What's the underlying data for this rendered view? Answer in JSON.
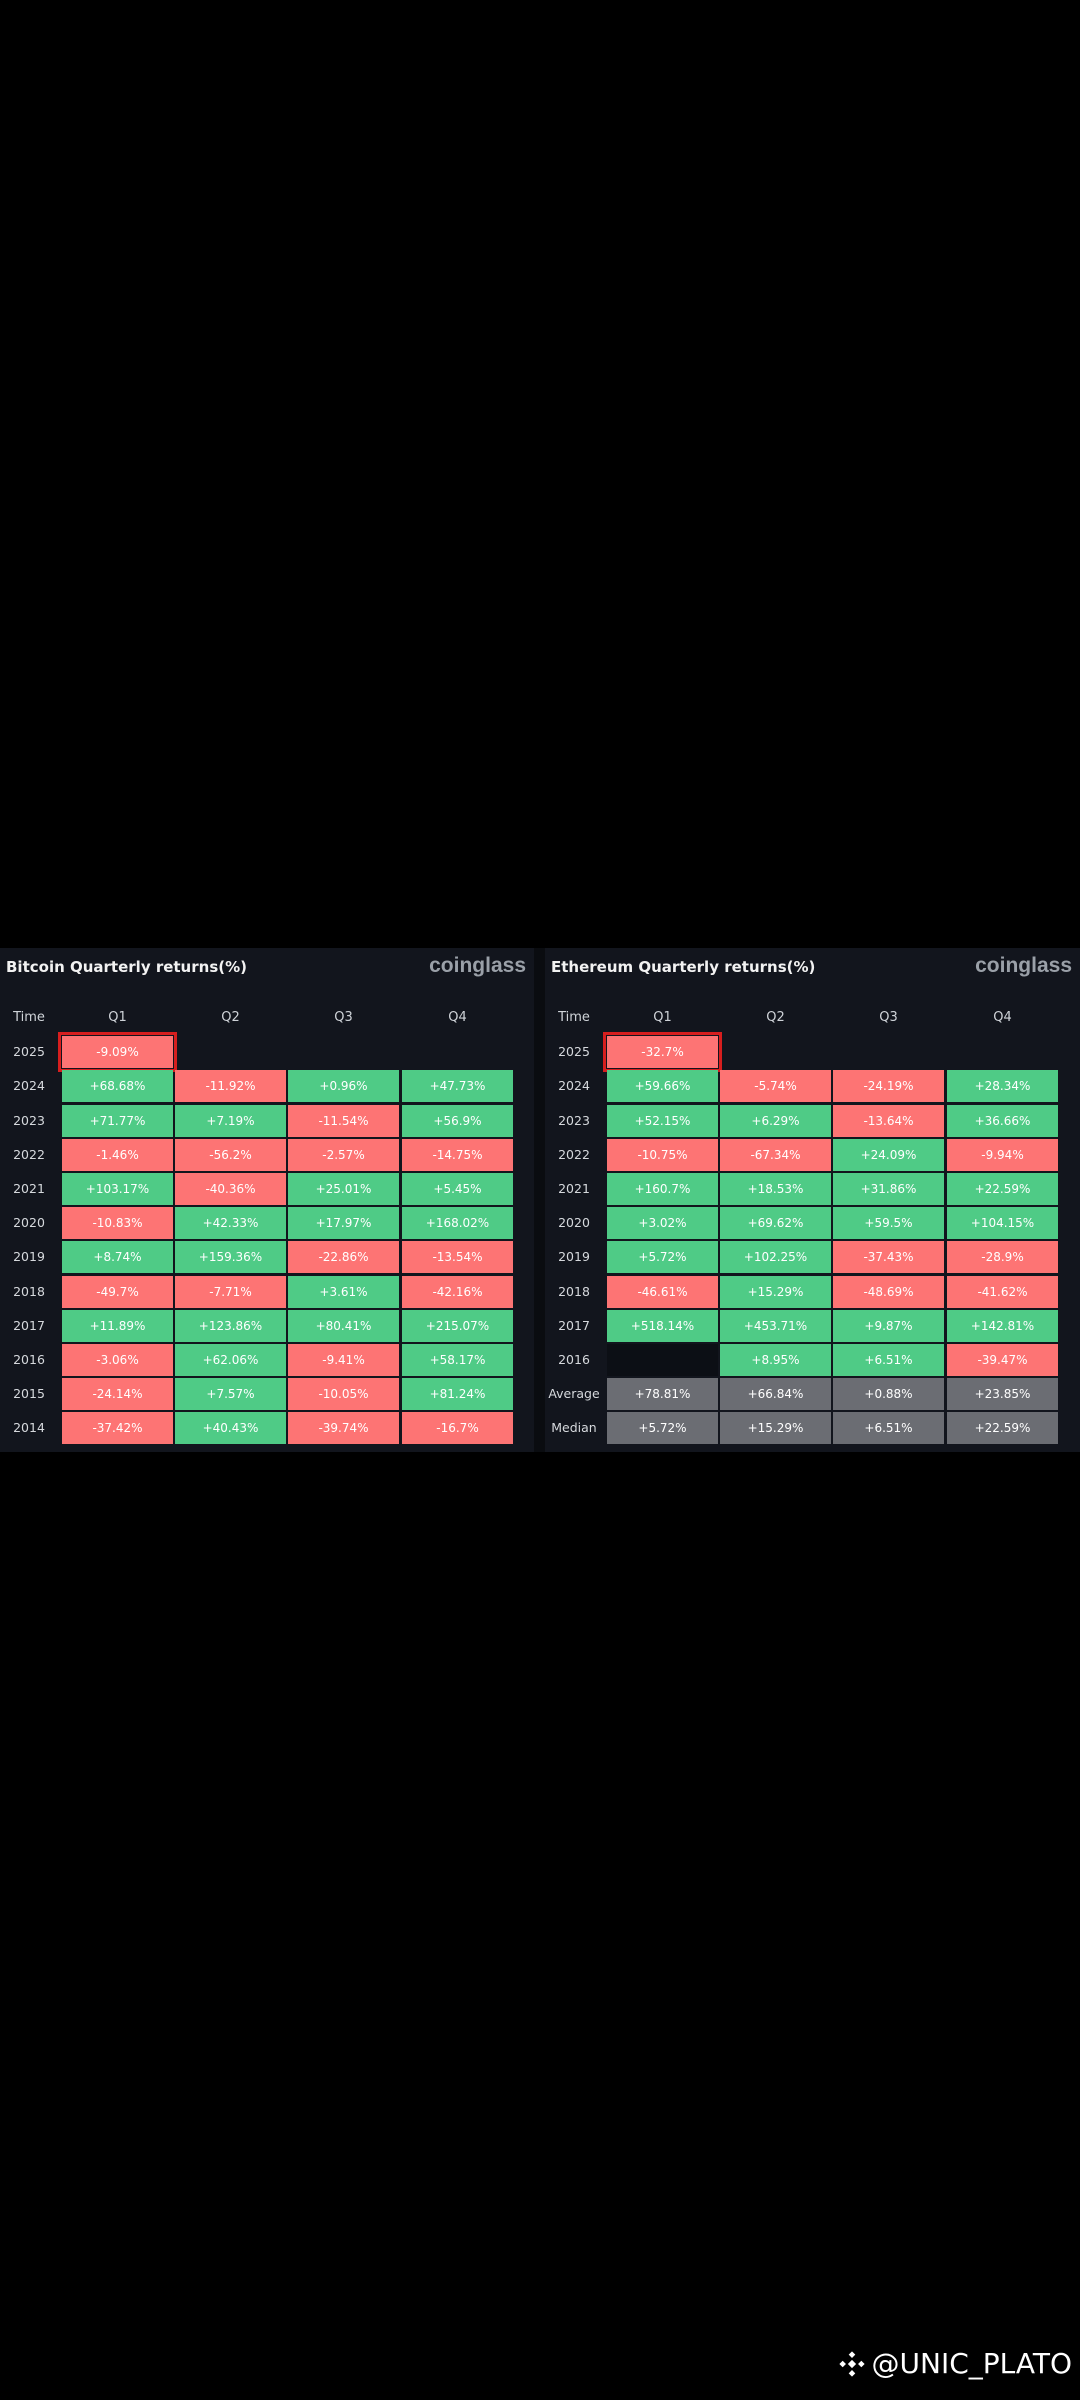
{
  "btc": {
    "title": "Bitcoin Quarterly returns(%)",
    "brand": "coinglass",
    "headers": [
      "Time",
      "Q1",
      "Q2",
      "Q3",
      "Q4"
    ],
    "rows": [
      {
        "label": "2025",
        "values": [
          "-9.09%",
          "",
          "",
          ""
        ]
      },
      {
        "label": "2024",
        "values": [
          "+68.68%",
          "-11.92%",
          "+0.96%",
          "+47.73%"
        ]
      },
      {
        "label": "2023",
        "values": [
          "+71.77%",
          "+7.19%",
          "-11.54%",
          "+56.9%"
        ]
      },
      {
        "label": "2022",
        "values": [
          "-1.46%",
          "-56.2%",
          "-2.57%",
          "-14.75%"
        ]
      },
      {
        "label": "2021",
        "values": [
          "+103.17%",
          "-40.36%",
          "+25.01%",
          "+5.45%"
        ]
      },
      {
        "label": "2020",
        "values": [
          "-10.83%",
          "+42.33%",
          "+17.97%",
          "+168.02%"
        ]
      },
      {
        "label": "2019",
        "values": [
          "+8.74%",
          "+159.36%",
          "-22.86%",
          "-13.54%"
        ]
      },
      {
        "label": "2018",
        "values": [
          "-49.7%",
          "-7.71%",
          "+3.61%",
          "-42.16%"
        ]
      },
      {
        "label": "2017",
        "values": [
          "+11.89%",
          "+123.86%",
          "+80.41%",
          "+215.07%"
        ]
      },
      {
        "label": "2016",
        "values": [
          "-3.06%",
          "+62.06%",
          "-9.41%",
          "+58.17%"
        ]
      },
      {
        "label": "2015",
        "values": [
          "-24.14%",
          "+7.57%",
          "-10.05%",
          "+81.24%"
        ]
      },
      {
        "label": "2014",
        "values": [
          "-37.42%",
          "+40.43%",
          "-39.74%",
          "-16.7%"
        ]
      }
    ]
  },
  "eth": {
    "title": "Ethereum Quarterly returns(%)",
    "brand": "coinglass",
    "headers": [
      "Time",
      "Q1",
      "Q2",
      "Q3",
      "Q4"
    ],
    "rows": [
      {
        "label": "2025",
        "values": [
          "-32.7%",
          "",
          "",
          ""
        ]
      },
      {
        "label": "2024",
        "values": [
          "+59.66%",
          "-5.74%",
          "-24.19%",
          "+28.34%"
        ]
      },
      {
        "label": "2023",
        "values": [
          "+52.15%",
          "+6.29%",
          "-13.64%",
          "+36.66%"
        ]
      },
      {
        "label": "2022",
        "values": [
          "-10.75%",
          "-67.34%",
          "+24.09%",
          "-9.94%"
        ]
      },
      {
        "label": "2021",
        "values": [
          "+160.7%",
          "+18.53%",
          "+31.86%",
          "+22.59%"
        ]
      },
      {
        "label": "2020",
        "values": [
          "+3.02%",
          "+69.62%",
          "+59.5%",
          "+104.15%"
        ]
      },
      {
        "label": "2019",
        "values": [
          "+5.72%",
          "+102.25%",
          "-37.43%",
          "-28.9%"
        ]
      },
      {
        "label": "2018",
        "values": [
          "-46.61%",
          "+15.29%",
          "-48.69%",
          "-41.62%"
        ]
      },
      {
        "label": "2017",
        "values": [
          "+518.14%",
          "+453.71%",
          "+9.87%",
          "+142.81%"
        ]
      },
      {
        "label": "2016",
        "values": [
          "",
          "+8.95%",
          "+6.51%",
          "-39.47%"
        ]
      },
      {
        "label": "Average",
        "values": [
          "+78.81%",
          "+66.84%",
          "+0.88%",
          "+23.85%"
        ],
        "summary": true
      },
      {
        "label": "Median",
        "values": [
          "+5.72%",
          "+15.29%",
          "+6.51%",
          "+22.59%"
        ],
        "summary": true
      }
    ]
  },
  "colors": {
    "positive": "#4fcb86",
    "negative": "#fd7474",
    "neutral": "#6b6d73",
    "highlight": "#d71e1e"
  },
  "watermark": {
    "text": "@UNIC_PLATO",
    "icon": "binance-diamond-icon"
  },
  "chart_data": [
    {
      "type": "heatmap",
      "title": "Bitcoin Quarterly returns(%)",
      "x": [
        "Q1",
        "Q2",
        "Q3",
        "Q4"
      ],
      "y": [
        "2025",
        "2024",
        "2023",
        "2022",
        "2021",
        "2020",
        "2019",
        "2018",
        "2017",
        "2016",
        "2015",
        "2014"
      ],
      "values": [
        [
          -9.09,
          null,
          null,
          null
        ],
        [
          68.68,
          -11.92,
          0.96,
          47.73
        ],
        [
          71.77,
          7.19,
          -11.54,
          56.9
        ],
        [
          -1.46,
          -56.2,
          -2.57,
          -14.75
        ],
        [
          103.17,
          -40.36,
          25.01,
          5.45
        ],
        [
          -10.83,
          42.33,
          17.97,
          168.02
        ],
        [
          8.74,
          159.36,
          -22.86,
          -13.54
        ],
        [
          -49.7,
          -7.71,
          3.61,
          -42.16
        ],
        [
          11.89,
          123.86,
          80.41,
          215.07
        ],
        [
          -3.06,
          62.06,
          -9.41,
          58.17
        ],
        [
          -24.14,
          7.57,
          -10.05,
          81.24
        ],
        [
          -37.42,
          40.43,
          -39.74,
          -16.7
        ]
      ],
      "highlighted": {
        "row": "2025",
        "col": "Q1"
      }
    },
    {
      "type": "heatmap",
      "title": "Ethereum Quarterly returns(%)",
      "x": [
        "Q1",
        "Q2",
        "Q3",
        "Q4"
      ],
      "y": [
        "2025",
        "2024",
        "2023",
        "2022",
        "2021",
        "2020",
        "2019",
        "2018",
        "2017",
        "2016",
        "Average",
        "Median"
      ],
      "values": [
        [
          -32.7,
          null,
          null,
          null
        ],
        [
          59.66,
          -5.74,
          -24.19,
          28.34
        ],
        [
          52.15,
          6.29,
          -13.64,
          36.66
        ],
        [
          -10.75,
          -67.34,
          24.09,
          -9.94
        ],
        [
          160.7,
          18.53,
          31.86,
          22.59
        ],
        [
          3.02,
          69.62,
          59.5,
          104.15
        ],
        [
          5.72,
          102.25,
          -37.43,
          -28.9
        ],
        [
          -46.61,
          15.29,
          -48.69,
          -41.62
        ],
        [
          518.14,
          453.71,
          9.87,
          142.81
        ],
        [
          null,
          8.95,
          6.51,
          -39.47
        ],
        [
          78.81,
          66.84,
          0.88,
          23.85
        ],
        [
          5.72,
          15.29,
          6.51,
          22.59
        ]
      ],
      "highlighted": {
        "row": "2025",
        "col": "Q1"
      }
    }
  ]
}
